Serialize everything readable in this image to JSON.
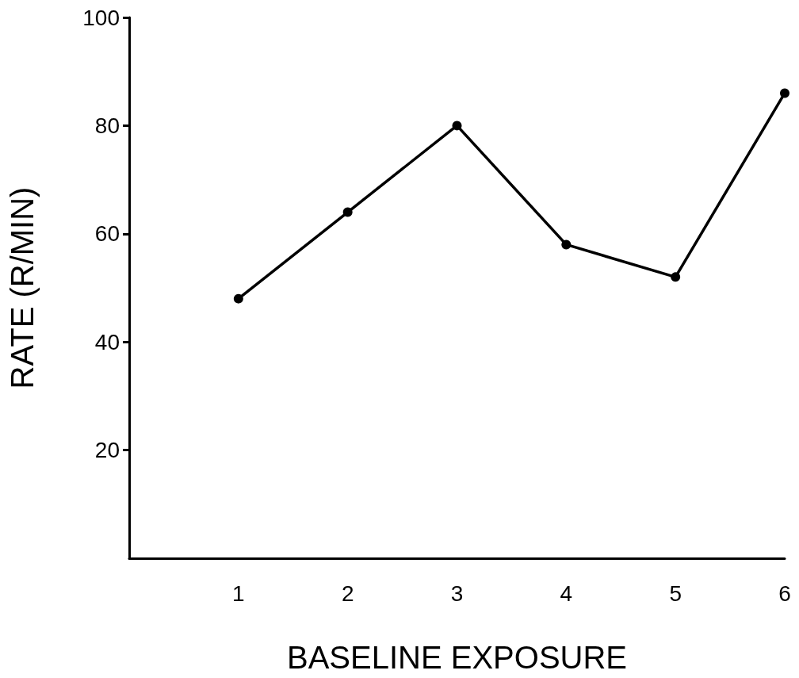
{
  "chart_data": {
    "type": "line",
    "xlabel": "BASELINE EXPOSURE",
    "ylabel": "RATE (R/MIN)",
    "x": [
      1,
      2,
      3,
      4,
      5,
      6
    ],
    "values": [
      48,
      64,
      80,
      58,
      52,
      86
    ],
    "color": "#000000",
    "xlim": [
      0,
      6
    ],
    "xticks": [
      1,
      2,
      3,
      4,
      5,
      6
    ],
    "ylim": [
      0,
      100
    ],
    "yticks": [
      20,
      40,
      60,
      80,
      100
    ],
    "marker": "circle",
    "line_style": "solid",
    "grid": false
  }
}
